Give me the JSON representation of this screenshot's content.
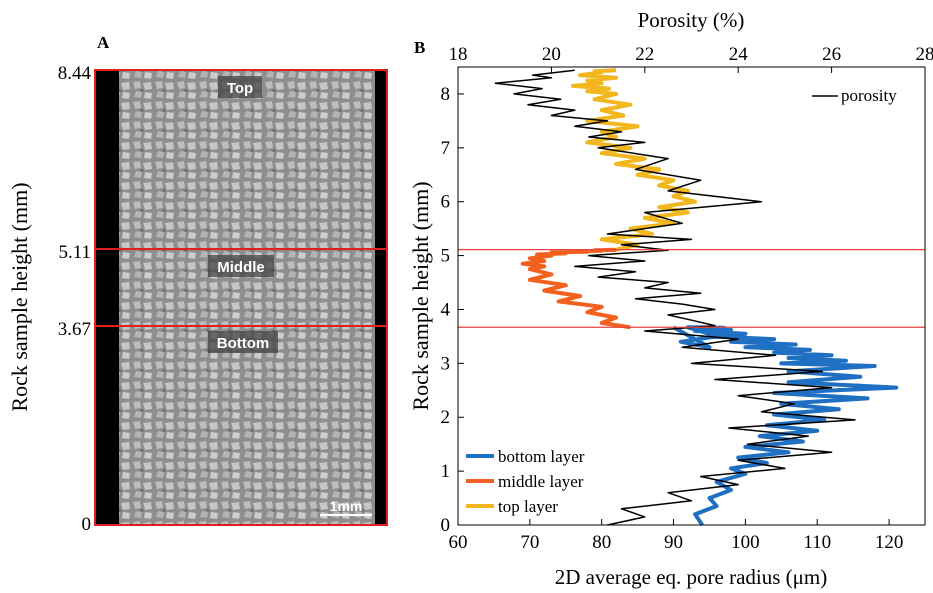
{
  "panel_a": {
    "letter": "A",
    "ylabel": "Rock sample height (mm)",
    "ticks": [
      {
        "label": "8.44",
        "value": 8.44
      },
      {
        "label": "5.11",
        "value": 5.11
      },
      {
        "label": "3.67",
        "value": 3.67
      },
      {
        "label": "0",
        "value": 0
      }
    ],
    "region_labels": {
      "top": "Top",
      "middle": "Middle",
      "bottom": "Bottom"
    },
    "scale_bar": "1mm"
  },
  "chart_data": {
    "type": "line",
    "panel_letter": "B",
    "xlabel": "2D average eq. pore radius (μm)",
    "x2label": "Porosity (%)",
    "ylabel": "Rock sample height (mm)",
    "xlim": [
      60,
      125
    ],
    "x2lim": [
      18,
      28
    ],
    "ylim": [
      0,
      8.5
    ],
    "xticks": [
      "60",
      "70",
      "80",
      "90",
      "100",
      "110",
      "120"
    ],
    "x2ticks": [
      "18",
      "20",
      "22",
      "24",
      "26",
      "28"
    ],
    "yticks": [
      "0",
      "1",
      "2",
      "3",
      "4",
      "5",
      "6",
      "7",
      "8"
    ],
    "hlines": [
      5.11,
      3.67
    ],
    "hline_color": "#e8453c",
    "legend_placement": "top-right",
    "legend2_placement": "bottom-left",
    "series": [
      {
        "name": "bottom layer",
        "axis": "x",
        "color": "#1f6fc2",
        "x": [
          94,
          93,
          96,
          95,
          98,
          96,
          100,
          98,
          103,
          99,
          106,
          100,
          108,
          102,
          110,
          103,
          111,
          104,
          113,
          105,
          117,
          104,
          121,
          106,
          116,
          106,
          118,
          105,
          114,
          106,
          112,
          104,
          109,
          100,
          107,
          98,
          104,
          95,
          100,
          93,
          98,
          93,
          97,
          92,
          96,
          91,
          95,
          90
        ],
        "y": [
          0.0,
          0.2,
          0.35,
          0.5,
          0.65,
          0.8,
          0.95,
          1.05,
          1.15,
          1.25,
          1.35,
          1.45,
          1.55,
          1.65,
          1.75,
          1.85,
          1.95,
          2.05,
          2.15,
          2.25,
          2.35,
          2.45,
          2.55,
          2.65,
          2.75,
          2.85,
          2.95,
          3.0,
          3.05,
          3.1,
          3.15,
          3.2,
          3.25,
          3.3,
          3.35,
          3.4,
          3.45,
          3.5,
          3.55,
          3.6,
          3.62,
          3.64,
          3.66,
          3.67,
          3.5,
          3.4,
          3.3,
          3.67
        ]
      },
      {
        "name": "middle layer",
        "axis": "x",
        "color": "#f2611d",
        "x": [
          84,
          80,
          82,
          78,
          80,
          74,
          77,
          72,
          75,
          70,
          73,
          70,
          72,
          69,
          72,
          70,
          73,
          71,
          75,
          73,
          78,
          76,
          80,
          79,
          82,
          81
        ],
        "y": [
          3.67,
          3.75,
          3.85,
          3.95,
          4.05,
          4.15,
          4.25,
          4.35,
          4.45,
          4.55,
          4.65,
          4.75,
          4.8,
          4.85,
          4.9,
          4.95,
          5.0,
          5.02,
          5.04,
          5.06,
          5.07,
          5.08,
          5.09,
          5.1,
          5.105,
          5.11
        ]
      },
      {
        "name": "top layer",
        "axis": "x",
        "color": "#f2b71e",
        "x": [
          82,
          85,
          80,
          87,
          84,
          90,
          86,
          92,
          88,
          93,
          90,
          92,
          88,
          90,
          85,
          88,
          82,
          86,
          80,
          84,
          78,
          82,
          80,
          85,
          78,
          83,
          80,
          84,
          79,
          82,
          78,
          81,
          76,
          80,
          78,
          82,
          77,
          80,
          79,
          82
        ],
        "y": [
          5.11,
          5.2,
          5.3,
          5.4,
          5.5,
          5.6,
          5.7,
          5.8,
          5.9,
          6.0,
          6.1,
          6.2,
          6.3,
          6.4,
          6.5,
          6.6,
          6.7,
          6.8,
          6.9,
          7.0,
          7.1,
          7.2,
          7.3,
          7.4,
          7.5,
          7.6,
          7.7,
          7.8,
          7.9,
          8.0,
          8.05,
          8.1,
          8.15,
          8.2,
          8.25,
          8.3,
          8.35,
          8.4,
          8.42,
          8.44
        ]
      },
      {
        "name": "porosity",
        "axis": "x2",
        "color": "#000000",
        "x": [
          21.2,
          22.0,
          21.5,
          23.0,
          22.5,
          24.0,
          23.2,
          25.0,
          24.0,
          26.0,
          24.2,
          25.5,
          23.8,
          26.5,
          24.5,
          25.2,
          24.0,
          26.0,
          23.5,
          25.8,
          23.0,
          24.8,
          22.8,
          24.0,
          22.0,
          23.5,
          23.0,
          22.5,
          23.5,
          22.8,
          21.8,
          23.2,
          22.0,
          22.5,
          21.0,
          21.8,
          20.5,
          22.0,
          20.8,
          22.5,
          21.5,
          23.0,
          21.2,
          22.8,
          22.0,
          24.5,
          22.5,
          23.2,
          21.8,
          22.5,
          21.0,
          22.0,
          20.8,
          21.5,
          20.5,
          21.2,
          20.0,
          20.5,
          19.5,
          20.2,
          19.2,
          19.8,
          18.8,
          20.0,
          19.6,
          20.5
        ],
        "y": [
          0.0,
          0.15,
          0.3,
          0.45,
          0.6,
          0.75,
          0.9,
          1.05,
          1.2,
          1.35,
          1.5,
          1.65,
          1.8,
          1.95,
          2.1,
          2.25,
          2.4,
          2.55,
          2.7,
          2.85,
          3.0,
          3.15,
          3.3,
          3.45,
          3.6,
          3.7,
          3.8,
          3.9,
          4.0,
          4.1,
          4.2,
          4.3,
          4.4,
          4.5,
          4.6,
          4.7,
          4.8,
          4.9,
          5.0,
          5.1,
          5.2,
          5.3,
          5.4,
          5.6,
          5.8,
          6.0,
          6.2,
          6.4,
          6.6,
          6.8,
          7.0,
          7.1,
          7.2,
          7.3,
          7.4,
          7.5,
          7.6,
          7.7,
          7.8,
          7.9,
          8.0,
          8.1,
          8.2,
          8.3,
          8.35,
          8.44
        ]
      }
    ]
  }
}
